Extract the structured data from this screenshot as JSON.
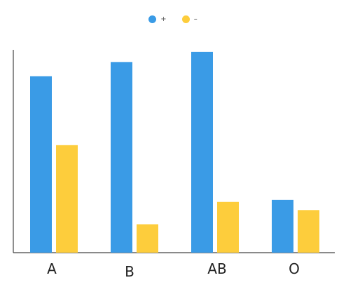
{
  "chart_data": {
    "type": "bar",
    "categories": [
      "A",
      "B",
      "AB",
      "O"
    ],
    "series": [
      {
        "name": "+",
        "color": "#3a9be6",
        "values": [
          87,
          94,
          99,
          26
        ]
      },
      {
        "name": "–",
        "color": "#fdcd3c",
        "values": [
          53,
          14,
          25,
          21
        ]
      }
    ],
    "ylim": [
      0,
      100
    ],
    "grid": false,
    "legend": "top-center"
  }
}
